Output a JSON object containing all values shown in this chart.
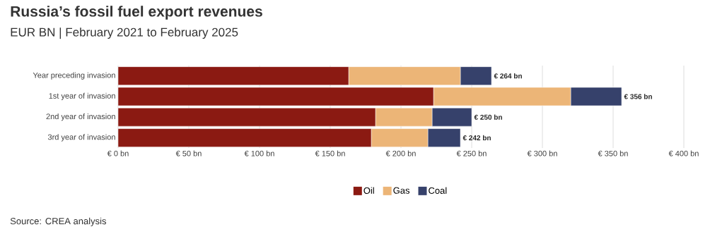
{
  "chart_data": {
    "type": "bar",
    "orientation": "horizontal",
    "stacked": true,
    "title": "Russia’s fossil fuel export revenues",
    "subtitle": "EUR BN | February 2021 to February 2025",
    "categories": [
      "Year preceding invasion",
      "1st year of invasion",
      "2nd year of invasion",
      "3rd year of invasion"
    ],
    "series": [
      {
        "name": "Oil",
        "color": "#8b1a12",
        "values": [
          163,
          223,
          182,
          179
        ]
      },
      {
        "name": "Gas",
        "color": "#ecb577",
        "values": [
          79,
          97,
          40,
          40
        ]
      },
      {
        "name": "Coal",
        "color": "#36416b",
        "values": [
          22,
          36,
          28,
          23
        ]
      }
    ],
    "totals": [
      "€ 264 bn",
      "€ 356 bn",
      "€ 250 bn",
      "€ 242 bn"
    ],
    "xlim": [
      0,
      400
    ],
    "xticks": [
      {
        "value": 0,
        "label": "€ 0 bn"
      },
      {
        "value": 50,
        "label": "€ 50 bn"
      },
      {
        "value": 100,
        "label": "€ 100 bn"
      },
      {
        "value": 150,
        "label": "€ 150 bn"
      },
      {
        "value": 200,
        "label": "€ 200 bn"
      },
      {
        "value": 250,
        "label": "€ 250 bn"
      },
      {
        "value": 300,
        "label": "€ 300 bn"
      },
      {
        "value": 350,
        "label": "€ 350 bn"
      },
      {
        "value": 400,
        "label": "€ 400 bn"
      }
    ],
    "grid": "x",
    "legend": "bottom",
    "annotations": [
      "Source: CREA analysis"
    ]
  }
}
